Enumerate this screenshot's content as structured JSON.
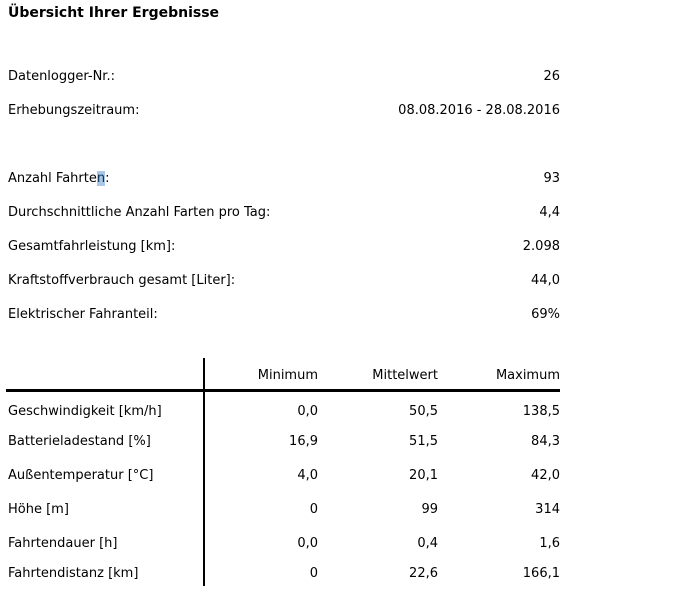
{
  "page": {
    "title": "Übersicht Ihrer Ergebnisse",
    "background_color": "#ffffff",
    "text_color": "#000000",
    "selection_highlight_color": "#a9c7e6"
  },
  "summary_top": [
    {
      "label": "Datenlogger-Nr.:",
      "value": "26"
    },
    {
      "label": "Erhebungszeitraum:",
      "value": "08.08.2016 - 28.08.2016"
    }
  ],
  "summary_main": [
    {
      "label_pre": "Anzahl Fahrte",
      "label_selected": "n",
      "label_post": ":",
      "value": "93"
    },
    {
      "label": "Durchschnittliche Anzahl Farten pro Tag:",
      "value": "4,4"
    },
    {
      "label": "Gesamtfahrleistung [km]:",
      "value": "2.098"
    },
    {
      "label": "Kraftstoffverbrauch gesamt [Liter]:",
      "value": "44,0"
    },
    {
      "label": "Elektrischer Fahranteil:",
      "value": "69%"
    }
  ],
  "table": {
    "headers": {
      "minimum": "Minimum",
      "mittelwert": "Mittelwert",
      "maximum": "Maximum"
    },
    "rows": [
      {
        "label": "Geschwindigkeit [km/h]",
        "minimum": "0,0",
        "mittelwert": "50,5",
        "maximum": "138,5"
      },
      {
        "label": "Batterieladestand [%]",
        "minimum": "16,9",
        "mittelwert": "51,5",
        "maximum": "84,3"
      },
      {
        "label": "Außentemperatur [°C]",
        "minimum": "4,0",
        "mittelwert": "20,1",
        "maximum": "42,0"
      },
      {
        "label": "Höhe [m]",
        "minimum": "0",
        "mittelwert": "99",
        "maximum": "314"
      },
      {
        "label": "Fahrtendauer [h]",
        "minimum": "0,0",
        "mittelwert": "0,4",
        "maximum": "1,6"
      },
      {
        "label": "Fahrtendistanz [km]",
        "minimum": "0",
        "mittelwert": "22,6",
        "maximum": "166,1"
      }
    ]
  }
}
